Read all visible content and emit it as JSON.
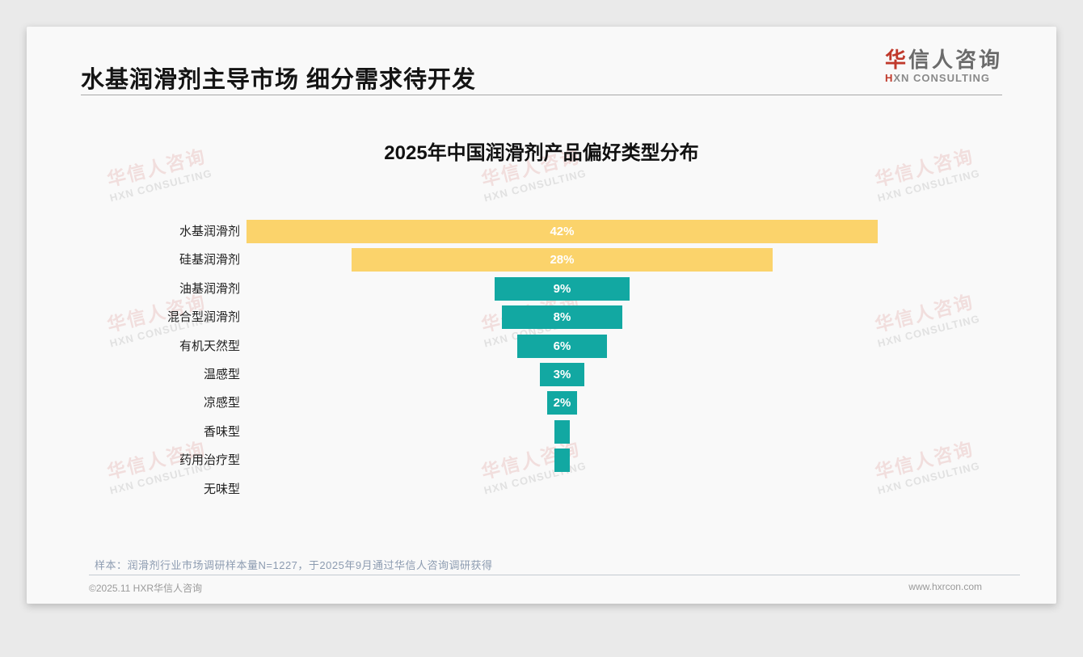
{
  "page": {
    "title": "水基润滑剂主导市场 细分需求待开发",
    "logo": {
      "cn_first": "华",
      "cn_rest": "信人咨询",
      "en_first": "H",
      "en_rest": "XN CONSULTING"
    },
    "footnote": "样本：润滑剂行业市场调研样本量N=1227，于2025年9月通过华信人咨询调研获得",
    "footer": {
      "left": "©2025.11 HXR华信人咨询",
      "right": "www.hxrcon.com"
    },
    "watermark": {
      "line1": "华信人咨询",
      "line2": "HXN CONSULTING"
    }
  },
  "chart_data": {
    "type": "bar",
    "subtype": "centered-funnel-horizontal-bars",
    "title": "2025年中国润滑剂产品偏好类型分布",
    "categories": [
      "水基润滑剂",
      "硅基润滑剂",
      "油基润滑剂",
      "混合型润滑剂",
      "有机天然型",
      "温感型",
      "凉感型",
      "香味型",
      "药用治疗型",
      "无味型"
    ],
    "values": [
      42,
      28,
      9,
      8,
      6,
      3,
      2,
      1,
      1,
      0
    ],
    "unit": "%",
    "data_labels": [
      "42%",
      "28%",
      "9%",
      "8%",
      "6%",
      "3%",
      "2%",
      "",
      "",
      ""
    ],
    "xlabel": "",
    "ylabel": "",
    "grid": false,
    "legend": false,
    "colors": {
      "highlight": "#fbd36b",
      "default": "#12a8a2",
      "highlight_count": 2,
      "label_text": "#ffffff"
    }
  }
}
